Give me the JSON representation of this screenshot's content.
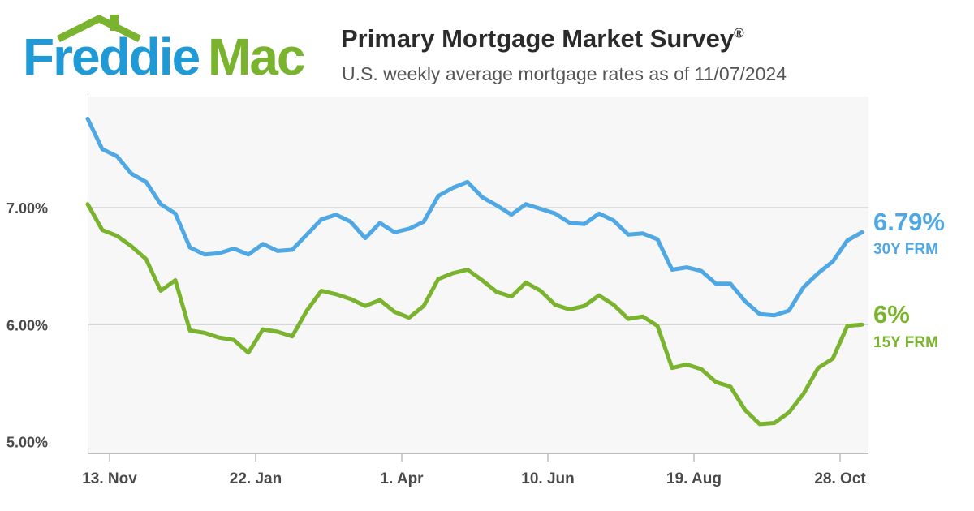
{
  "brand": {
    "word1": "Freddie",
    "word2": "Mac",
    "colors": {
      "blue": "#1f9ad6",
      "green": "#7ab32e"
    }
  },
  "header": {
    "title": "Primary Mortgage Market Survey",
    "title_mark": "®",
    "subtitle": "U.S. weekly average mortgage rates as of 11/07/2024"
  },
  "chart_data": {
    "type": "line",
    "title": "Primary Mortgage Market Survey®",
    "subtitle": "U.S. weekly average mortgage rates as of 11/07/2024",
    "xlabel": "",
    "ylabel": "",
    "ylim": [
      4.9,
      7.95
    ],
    "yticks": [
      {
        "value": 5.0,
        "label": "5.00%"
      },
      {
        "value": 6.0,
        "label": "6.00%"
      },
      {
        "value": 7.0,
        "label": "7.00%"
      }
    ],
    "grid": true,
    "x": [
      0,
      1,
      2,
      3,
      4,
      5,
      6,
      7,
      8,
      9,
      10,
      11,
      12,
      13,
      14,
      15,
      16,
      17,
      18,
      19,
      20,
      21,
      22,
      23,
      24,
      25,
      26,
      27,
      28,
      29,
      30,
      31,
      32,
      33,
      34,
      35,
      36,
      37,
      38,
      39,
      40,
      41,
      42,
      43,
      44,
      45,
      46,
      47,
      48,
      49,
      50,
      51,
      52,
      53
    ],
    "xticks": [
      {
        "index": 1.5,
        "label": "13. Nov"
      },
      {
        "index": 11.5,
        "label": "22. Jan"
      },
      {
        "index": 21.5,
        "label": "1. Apr"
      },
      {
        "index": 31.5,
        "label": "10. Jun"
      },
      {
        "index": 41.5,
        "label": "19. Aug"
      },
      {
        "index": 51.5,
        "label": "28. Oct"
      }
    ],
    "series": [
      {
        "name": "30Y FRM",
        "color": "#4fa8e4",
        "values": [
          7.76,
          7.5,
          7.44,
          7.29,
          7.22,
          7.03,
          6.95,
          6.66,
          6.6,
          6.61,
          6.65,
          6.6,
          6.69,
          6.63,
          6.64,
          6.77,
          6.9,
          6.94,
          6.88,
          6.74,
          6.87,
          6.79,
          6.82,
          6.88,
          7.1,
          7.17,
          7.22,
          7.09,
          7.02,
          6.94,
          7.03,
          6.99,
          6.95,
          6.87,
          6.86,
          6.95,
          6.89,
          6.77,
          6.78,
          6.73,
          6.47,
          6.49,
          6.46,
          6.35,
          6.35,
          6.2,
          6.09,
          6.08,
          6.12,
          6.32,
          6.44,
          6.54,
          6.72,
          6.79
        ]
      },
      {
        "name": "15Y FRM",
        "color": "#7ab32e",
        "values": [
          7.03,
          6.81,
          6.76,
          6.67,
          6.56,
          6.29,
          6.38,
          5.95,
          5.93,
          5.89,
          5.87,
          5.76,
          5.96,
          5.94,
          5.9,
          6.12,
          6.29,
          6.26,
          6.22,
          6.16,
          6.21,
          6.11,
          6.06,
          6.16,
          6.39,
          6.44,
          6.47,
          6.38,
          6.28,
          6.24,
          6.36,
          6.29,
          6.17,
          6.13,
          6.16,
          6.25,
          6.17,
          6.05,
          6.07,
          5.99,
          5.63,
          5.66,
          5.62,
          5.51,
          5.47,
          5.27,
          5.15,
          5.16,
          5.25,
          5.41,
          5.63,
          5.71,
          5.99,
          6.0
        ]
      }
    ],
    "end_labels": [
      {
        "value_text": "6.79%",
        "name": "30Y FRM"
      },
      {
        "value_text": "6%",
        "name": "15Y FRM"
      }
    ]
  }
}
